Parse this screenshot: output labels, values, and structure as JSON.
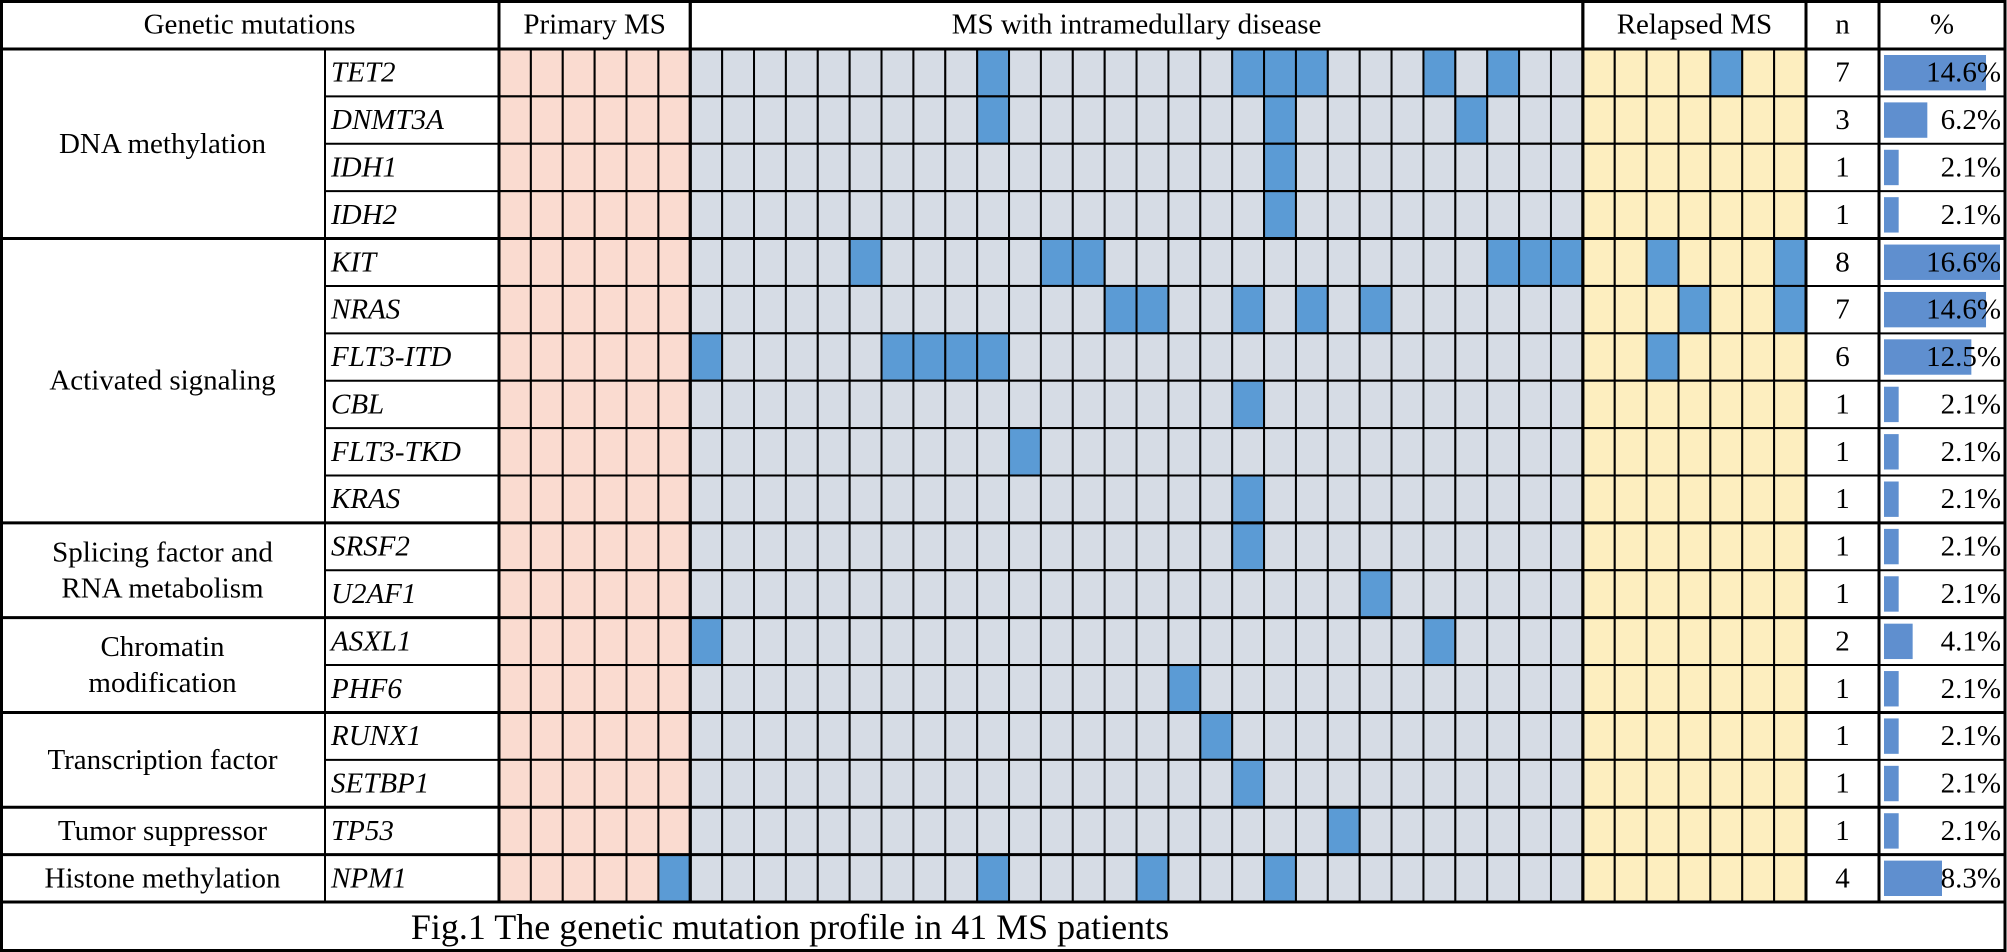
{
  "header": {
    "group": "Genetic mutations",
    "primary": "Primary MS",
    "intramedullary": "MS with intramedullary disease",
    "relapsed": "Relapsed MS",
    "n": "n",
    "percent": "%"
  },
  "groups": [
    {
      "label_lines": [
        "DNA methylation"
      ],
      "genes": [
        {
          "name": "TET2",
          "primary": [
            0,
            0,
            0,
            0,
            0,
            0
          ],
          "intramedullary": [
            0,
            0,
            0,
            0,
            0,
            0,
            0,
            0,
            0,
            1,
            0,
            0,
            0,
            0,
            0,
            0,
            0,
            1,
            1,
            1,
            0,
            0,
            0,
            1,
            0,
            1,
            0,
            0
          ],
          "relapsed": [
            0,
            0,
            0,
            0,
            1,
            0,
            0
          ],
          "n": 7,
          "percent": 14.6,
          "percent_label": "14.6%"
        },
        {
          "name": "DNMT3A",
          "primary": [
            0,
            0,
            0,
            0,
            0,
            0
          ],
          "intramedullary": [
            0,
            0,
            0,
            0,
            0,
            0,
            0,
            0,
            0,
            1,
            0,
            0,
            0,
            0,
            0,
            0,
            0,
            0,
            1,
            0,
            0,
            0,
            0,
            0,
            1,
            0,
            0,
            0
          ],
          "relapsed": [
            0,
            0,
            0,
            0,
            0,
            0,
            0
          ],
          "n": 3,
          "percent": 6.2,
          "percent_label": "6.2%"
        },
        {
          "name": "IDH1",
          "primary": [
            0,
            0,
            0,
            0,
            0,
            0
          ],
          "intramedullary": [
            0,
            0,
            0,
            0,
            0,
            0,
            0,
            0,
            0,
            0,
            0,
            0,
            0,
            0,
            0,
            0,
            0,
            0,
            1,
            0,
            0,
            0,
            0,
            0,
            0,
            0,
            0,
            0
          ],
          "relapsed": [
            0,
            0,
            0,
            0,
            0,
            0,
            0
          ],
          "n": 1,
          "percent": 2.1,
          "percent_label": "2.1%"
        },
        {
          "name": "IDH2",
          "primary": [
            0,
            0,
            0,
            0,
            0,
            0
          ],
          "intramedullary": [
            0,
            0,
            0,
            0,
            0,
            0,
            0,
            0,
            0,
            0,
            0,
            0,
            0,
            0,
            0,
            0,
            0,
            0,
            1,
            0,
            0,
            0,
            0,
            0,
            0,
            0,
            0,
            0
          ],
          "relapsed": [
            0,
            0,
            0,
            0,
            0,
            0,
            0
          ],
          "n": 1,
          "percent": 2.1,
          "percent_label": "2.1%"
        }
      ]
    },
    {
      "label_lines": [
        "Activated signaling"
      ],
      "genes": [
        {
          "name": "KIT",
          "primary": [
            0,
            0,
            0,
            0,
            0,
            0
          ],
          "intramedullary": [
            0,
            0,
            0,
            0,
            0,
            1,
            0,
            0,
            0,
            0,
            0,
            1,
            1,
            0,
            0,
            0,
            0,
            0,
            0,
            0,
            0,
            0,
            0,
            0,
            0,
            1,
            1,
            1
          ],
          "relapsed": [
            0,
            0,
            1,
            0,
            0,
            0,
            1
          ],
          "n": 8,
          "percent": 16.6,
          "percent_label": "16.6%"
        },
        {
          "name": "NRAS",
          "primary": [
            0,
            0,
            0,
            0,
            0,
            0
          ],
          "intramedullary": [
            0,
            0,
            0,
            0,
            0,
            0,
            0,
            0,
            0,
            0,
            0,
            0,
            0,
            1,
            1,
            0,
            0,
            1,
            0,
            1,
            0,
            1,
            0,
            0,
            0,
            0,
            0,
            0
          ],
          "relapsed": [
            0,
            0,
            0,
            1,
            0,
            0,
            1
          ],
          "n": 7,
          "percent": 14.6,
          "percent_label": "14.6%"
        },
        {
          "name": "FLT3-ITD",
          "primary": [
            0,
            0,
            0,
            0,
            0,
            0
          ],
          "intramedullary": [
            1,
            0,
            0,
            0,
            0,
            0,
            1,
            1,
            1,
            1,
            0,
            0,
            0,
            0,
            0,
            0,
            0,
            0,
            0,
            0,
            0,
            0,
            0,
            0,
            0,
            0,
            0,
            0
          ],
          "relapsed": [
            0,
            0,
            1,
            0,
            0,
            0,
            0
          ],
          "n": 6,
          "percent": 12.5,
          "percent_label": "12.5%"
        },
        {
          "name": "CBL",
          "primary": [
            0,
            0,
            0,
            0,
            0,
            0
          ],
          "intramedullary": [
            0,
            0,
            0,
            0,
            0,
            0,
            0,
            0,
            0,
            0,
            0,
            0,
            0,
            0,
            0,
            0,
            0,
            1,
            0,
            0,
            0,
            0,
            0,
            0,
            0,
            0,
            0,
            0
          ],
          "relapsed": [
            0,
            0,
            0,
            0,
            0,
            0,
            0
          ],
          "n": 1,
          "percent": 2.1,
          "percent_label": "2.1%"
        },
        {
          "name": "FLT3-TKD",
          "primary": [
            0,
            0,
            0,
            0,
            0,
            0
          ],
          "intramedullary": [
            0,
            0,
            0,
            0,
            0,
            0,
            0,
            0,
            0,
            0,
            1,
            0,
            0,
            0,
            0,
            0,
            0,
            0,
            0,
            0,
            0,
            0,
            0,
            0,
            0,
            0,
            0,
            0
          ],
          "relapsed": [
            0,
            0,
            0,
            0,
            0,
            0,
            0
          ],
          "n": 1,
          "percent": 2.1,
          "percent_label": "2.1%"
        },
        {
          "name": "KRAS",
          "primary": [
            0,
            0,
            0,
            0,
            0,
            0
          ],
          "intramedullary": [
            0,
            0,
            0,
            0,
            0,
            0,
            0,
            0,
            0,
            0,
            0,
            0,
            0,
            0,
            0,
            0,
            0,
            1,
            0,
            0,
            0,
            0,
            0,
            0,
            0,
            0,
            0,
            0
          ],
          "relapsed": [
            0,
            0,
            0,
            0,
            0,
            0,
            0
          ],
          "n": 1,
          "percent": 2.1,
          "percent_label": "2.1%"
        }
      ]
    },
    {
      "label_lines": [
        "Splicing factor and",
        "RNA metabolism"
      ],
      "genes": [
        {
          "name": "SRSF2",
          "primary": [
            0,
            0,
            0,
            0,
            0,
            0
          ],
          "intramedullary": [
            0,
            0,
            0,
            0,
            0,
            0,
            0,
            0,
            0,
            0,
            0,
            0,
            0,
            0,
            0,
            0,
            0,
            1,
            0,
            0,
            0,
            0,
            0,
            0,
            0,
            0,
            0,
            0
          ],
          "relapsed": [
            0,
            0,
            0,
            0,
            0,
            0,
            0
          ],
          "n": 1,
          "percent": 2.1,
          "percent_label": "2.1%"
        },
        {
          "name": "U2AF1",
          "primary": [
            0,
            0,
            0,
            0,
            0,
            0
          ],
          "intramedullary": [
            0,
            0,
            0,
            0,
            0,
            0,
            0,
            0,
            0,
            0,
            0,
            0,
            0,
            0,
            0,
            0,
            0,
            0,
            0,
            0,
            0,
            1,
            0,
            0,
            0,
            0,
            0,
            0
          ],
          "relapsed": [
            0,
            0,
            0,
            0,
            0,
            0,
            0
          ],
          "n": 1,
          "percent": 2.1,
          "percent_label": "2.1%"
        }
      ]
    },
    {
      "label_lines": [
        "Chromatin",
        "modification"
      ],
      "genes": [
        {
          "name": "ASXL1",
          "primary": [
            0,
            0,
            0,
            0,
            0,
            0
          ],
          "intramedullary": [
            1,
            0,
            0,
            0,
            0,
            0,
            0,
            0,
            0,
            0,
            0,
            0,
            0,
            0,
            0,
            0,
            0,
            0,
            0,
            0,
            0,
            0,
            0,
            1,
            0,
            0,
            0,
            0
          ],
          "relapsed": [
            0,
            0,
            0,
            0,
            0,
            0,
            0
          ],
          "n": 2,
          "percent": 4.1,
          "percent_label": "4.1%"
        },
        {
          "name": "PHF6",
          "primary": [
            0,
            0,
            0,
            0,
            0,
            0
          ],
          "intramedullary": [
            0,
            0,
            0,
            0,
            0,
            0,
            0,
            0,
            0,
            0,
            0,
            0,
            0,
            0,
            0,
            1,
            0,
            0,
            0,
            0,
            0,
            0,
            0,
            0,
            0,
            0,
            0,
            0
          ],
          "relapsed": [
            0,
            0,
            0,
            0,
            0,
            0,
            0
          ],
          "n": 1,
          "percent": 2.1,
          "percent_label": "2.1%"
        }
      ]
    },
    {
      "label_lines": [
        "Transcription factor"
      ],
      "genes": [
        {
          "name": "RUNX1",
          "primary": [
            0,
            0,
            0,
            0,
            0,
            0
          ],
          "intramedullary": [
            0,
            0,
            0,
            0,
            0,
            0,
            0,
            0,
            0,
            0,
            0,
            0,
            0,
            0,
            0,
            0,
            1,
            0,
            0,
            0,
            0,
            0,
            0,
            0,
            0,
            0,
            0,
            0
          ],
          "relapsed": [
            0,
            0,
            0,
            0,
            0,
            0,
            0
          ],
          "n": 1,
          "percent": 2.1,
          "percent_label": "2.1%"
        },
        {
          "name": "SETBP1",
          "primary": [
            0,
            0,
            0,
            0,
            0,
            0
          ],
          "intramedullary": [
            0,
            0,
            0,
            0,
            0,
            0,
            0,
            0,
            0,
            0,
            0,
            0,
            0,
            0,
            0,
            0,
            0,
            1,
            0,
            0,
            0,
            0,
            0,
            0,
            0,
            0,
            0,
            0
          ],
          "relapsed": [
            0,
            0,
            0,
            0,
            0,
            0,
            0
          ],
          "n": 1,
          "percent": 2.1,
          "percent_label": "2.1%"
        }
      ]
    },
    {
      "label_lines": [
        "Tumor suppressor"
      ],
      "genes": [
        {
          "name": "TP53",
          "primary": [
            0,
            0,
            0,
            0,
            0,
            0
          ],
          "intramedullary": [
            0,
            0,
            0,
            0,
            0,
            0,
            0,
            0,
            0,
            0,
            0,
            0,
            0,
            0,
            0,
            0,
            0,
            0,
            0,
            0,
            1,
            0,
            0,
            0,
            0,
            0,
            0,
            0
          ],
          "relapsed": [
            0,
            0,
            0,
            0,
            0,
            0,
            0
          ],
          "n": 1,
          "percent": 2.1,
          "percent_label": "2.1%"
        }
      ]
    },
    {
      "label_lines": [
        "Histone methylation"
      ],
      "genes": [
        {
          "name": "NPM1",
          "primary": [
            0,
            0,
            0,
            0,
            0,
            1
          ],
          "intramedullary": [
            0,
            0,
            0,
            0,
            0,
            0,
            0,
            0,
            0,
            1,
            0,
            0,
            0,
            0,
            1,
            0,
            0,
            0,
            1,
            0,
            0,
            0,
            0,
            0,
            0,
            0,
            0,
            0
          ],
          "relapsed": [
            0,
            0,
            0,
            0,
            0,
            0,
            0
          ],
          "n": 4,
          "percent": 8.3,
          "percent_label": "8.3%"
        }
      ]
    }
  ],
  "caption": "Fig.1 The genetic mutation profile in 41 MS patients"
}
